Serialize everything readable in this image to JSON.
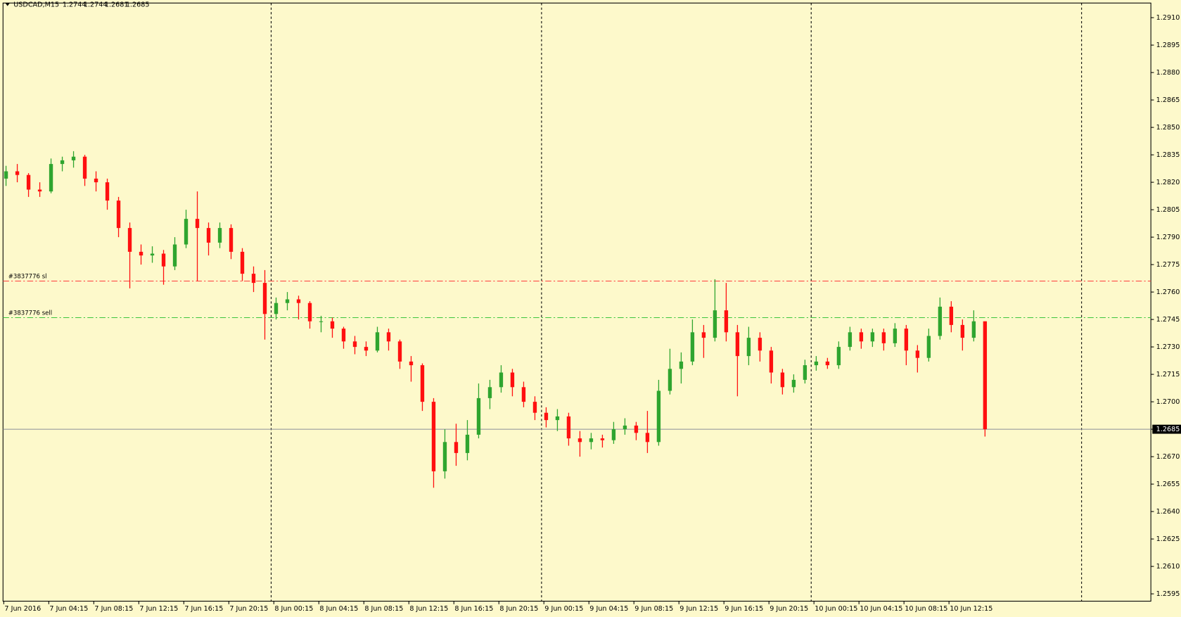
{
  "chart_data": {
    "type": "candlestick",
    "symbol": "USDCAD,M15",
    "up_color": "#2fa52f",
    "down_color": "#ff1010",
    "candles": [
      [
        1.2822,
        1.2829,
        1.2818,
        1.2826
      ],
      [
        1.2826,
        1.283,
        1.282,
        1.2824
      ],
      [
        1.2824,
        1.2825,
        1.2812,
        1.2816
      ],
      [
        1.2816,
        1.282,
        1.2812,
        1.2815
      ],
      [
        1.2815,
        1.2833,
        1.2814,
        1.283
      ],
      [
        1.283,
        1.2834,
        1.2826,
        1.2832
      ],
      [
        1.2832,
        1.2837,
        1.2828,
        1.2834
      ],
      [
        1.2834,
        1.2835,
        1.2818,
        1.2822
      ],
      [
        1.2822,
        1.2826,
        1.2815,
        1.282
      ],
      [
        1.282,
        1.2822,
        1.2805,
        1.281
      ],
      [
        1.281,
        1.2812,
        1.279,
        1.2795
      ],
      [
        1.2795,
        1.2798,
        1.2762,
        1.2782
      ],
      [
        1.2782,
        1.2786,
        1.2775,
        1.278
      ],
      [
        1.278,
        1.2785,
        1.2776,
        1.2781
      ],
      [
        1.2781,
        1.2783,
        1.2764,
        1.2774
      ],
      [
        1.2774,
        1.279,
        1.2772,
        1.2786
      ],
      [
        1.2786,
        1.2805,
        1.2784,
        1.28
      ],
      [
        1.28,
        1.2815,
        1.2766,
        1.2795
      ],
      [
        1.2795,
        1.2798,
        1.278,
        1.2787
      ],
      [
        1.2787,
        1.2798,
        1.2784,
        1.2795
      ],
      [
        1.2795,
        1.2797,
        1.2778,
        1.2782
      ],
      [
        1.2782,
        1.2784,
        1.2766,
        1.277
      ],
      [
        1.277,
        1.2774,
        1.276,
        1.2765
      ],
      [
        1.2765,
        1.2772,
        1.2734,
        1.2748
      ],
      [
        1.2748,
        1.2757,
        1.2745,
        1.2754
      ],
      [
        1.2754,
        1.276,
        1.275,
        1.2756
      ],
      [
        1.2756,
        1.2758,
        1.2745,
        1.2754
      ],
      [
        1.2754,
        1.2755,
        1.274,
        1.2744
      ],
      [
        1.2744,
        1.2747,
        1.2738,
        1.2744
      ],
      [
        1.2744,
        1.2746,
        1.2735,
        1.274
      ],
      [
        1.274,
        1.2741,
        1.2729,
        1.2733
      ],
      [
        1.2733,
        1.2736,
        1.2726,
        1.273
      ],
      [
        1.273,
        1.2733,
        1.2725,
        1.2728
      ],
      [
        1.2728,
        1.2741,
        1.2727,
        1.2738
      ],
      [
        1.2738,
        1.274,
        1.2728,
        1.2733
      ],
      [
        1.2733,
        1.2734,
        1.2718,
        1.2722
      ],
      [
        1.2722,
        1.2725,
        1.2711,
        1.272
      ],
      [
        1.272,
        1.2721,
        1.2695,
        1.27
      ],
      [
        1.27,
        1.2702,
        1.2653,
        1.2662
      ],
      [
        1.2662,
        1.2685,
        1.2658,
        1.2678
      ],
      [
        1.2678,
        1.2688,
        1.2665,
        1.2672
      ],
      [
        1.2672,
        1.269,
        1.2668,
        1.2682
      ],
      [
        1.2682,
        1.271,
        1.268,
        1.2702
      ],
      [
        1.2702,
        1.2712,
        1.2696,
        1.2708
      ],
      [
        1.2708,
        1.272,
        1.2705,
        1.2716
      ],
      [
        1.2716,
        1.2718,
        1.2703,
        1.2708
      ],
      [
        1.2708,
        1.2711,
        1.2697,
        1.27
      ],
      [
        1.27,
        1.2703,
        1.269,
        1.2694
      ],
      [
        1.2694,
        1.2697,
        1.2686,
        1.269
      ],
      [
        1.269,
        1.2696,
        1.2684,
        1.2692
      ],
      [
        1.2692,
        1.2694,
        1.2676,
        1.268
      ],
      [
        1.268,
        1.2684,
        1.267,
        1.2678
      ],
      [
        1.2678,
        1.2683,
        1.2674,
        1.268
      ],
      [
        1.268,
        1.2682,
        1.2675,
        1.2679
      ],
      [
        1.2679,
        1.2689,
        1.2677,
        1.2685
      ],
      [
        1.2685,
        1.2691,
        1.2682,
        1.2687
      ],
      [
        1.2687,
        1.2689,
        1.2679,
        1.2683
      ],
      [
        1.2683,
        1.2695,
        1.2672,
        1.2678
      ],
      [
        1.2678,
        1.2712,
        1.2676,
        1.2706
      ],
      [
        1.2706,
        1.2729,
        1.2704,
        1.2718
      ],
      [
        1.2718,
        1.2727,
        1.271,
        1.2722
      ],
      [
        1.2722,
        1.2745,
        1.272,
        1.2738
      ],
      [
        1.2738,
        1.2742,
        1.2724,
        1.2735
      ],
      [
        1.2735,
        1.2767,
        1.2733,
        1.275
      ],
      [
        1.275,
        1.2765,
        1.2733,
        1.2738
      ],
      [
        1.2738,
        1.2742,
        1.2703,
        1.2725
      ],
      [
        1.2725,
        1.2741,
        1.272,
        1.2735
      ],
      [
        1.2735,
        1.2738,
        1.2722,
        1.2728
      ],
      [
        1.2728,
        1.273,
        1.271,
        1.2716
      ],
      [
        1.2716,
        1.2718,
        1.2704,
        1.2708
      ],
      [
        1.2708,
        1.2715,
        1.2705,
        1.2712
      ],
      [
        1.2712,
        1.2723,
        1.271,
        1.272
      ],
      [
        1.272,
        1.2725,
        1.2717,
        1.2722
      ],
      [
        1.2722,
        1.2724,
        1.2718,
        1.272
      ],
      [
        1.272,
        1.2733,
        1.2718,
        1.273
      ],
      [
        1.273,
        1.2741,
        1.2728,
        1.2738
      ],
      [
        1.2738,
        1.274,
        1.2729,
        1.2733
      ],
      [
        1.2733,
        1.274,
        1.273,
        1.2738
      ],
      [
        1.2738,
        1.274,
        1.2728,
        1.2732
      ],
      [
        1.2732,
        1.2743,
        1.273,
        1.274
      ],
      [
        1.274,
        1.2742,
        1.272,
        1.2728
      ],
      [
        1.2728,
        1.2731,
        1.2716,
        1.2724
      ],
      [
        1.2724,
        1.274,
        1.2722,
        1.2736
      ],
      [
        1.2736,
        1.2757,
        1.2734,
        1.2752
      ],
      [
        1.2752,
        1.2755,
        1.2738,
        1.2742
      ],
      [
        1.2742,
        1.2745,
        1.2728,
        1.2735
      ],
      [
        1.2735,
        1.275,
        1.2733,
        1.2744
      ],
      [
        1.2744,
        1.2744,
        1.2681,
        1.2685
      ]
    ],
    "xticks": [
      {
        "value": 0,
        "label": "7 Jun 2016"
      },
      {
        "value": 4,
        "label": "7 Jun 04:15"
      },
      {
        "value": 8,
        "label": "7 Jun 08:15"
      },
      {
        "value": 12,
        "label": "7 Jun 12:15"
      },
      {
        "value": 16,
        "label": "7 Jun 16:15"
      },
      {
        "value": 20,
        "label": "7 Jun 20:15"
      },
      {
        "value": 24,
        "label": "8 Jun 00:15"
      },
      {
        "value": 28,
        "label": "8 Jun 04:15"
      },
      {
        "value": 32,
        "label": "8 Jun 08:15"
      },
      {
        "value": 36,
        "label": "8 Jun 12:15"
      },
      {
        "value": 40,
        "label": "8 Jun 16:15"
      },
      {
        "value": 44,
        "label": "8 Jun 20:15"
      },
      {
        "value": 48,
        "label": "9 Jun 00:15"
      },
      {
        "value": 52,
        "label": "9 Jun 04:15"
      },
      {
        "value": 56,
        "label": "9 Jun 08:15"
      },
      {
        "value": 60,
        "label": "9 Jun 12:15"
      },
      {
        "value": 64,
        "label": "9 Jun 16:15"
      },
      {
        "value": 68,
        "label": "9 Jun 20:15"
      },
      {
        "value": 72,
        "label": "10 Jun 00:15"
      },
      {
        "value": 76,
        "label": "10 Jun 04:15"
      },
      {
        "value": 80,
        "label": "10 Jun 08:15"
      },
      {
        "value": 84,
        "label": "10 Jun 12:15"
      }
    ],
    "ylim": [
      1.2591,
      1.2918
    ],
    "yticks": [
      {
        "value": 1.291,
        "label": "1.2910"
      },
      1.2895,
      {
        "value": 1.288,
        "label": "1.2880"
      },
      1.2865,
      {
        "value": 1.285,
        "label": "1.2850"
      },
      1.2835,
      {
        "value": 1.282,
        "label": "1.2820"
      },
      1.2805,
      {
        "value": 1.279,
        "label": "1.2790"
      },
      1.2775,
      {
        "value": 1.276,
        "label": "1.2760"
      },
      1.2745,
      {
        "value": 1.273,
        "label": "1.2730"
      },
      1.2715,
      {
        "value": 1.27,
        "label": "1.2700"
      },
      1.2685,
      {
        "value": 1.267,
        "label": "1.2670"
      },
      1.2655,
      {
        "value": 1.264,
        "label": "1.2640"
      },
      1.2625,
      {
        "value": 1.261,
        "label": "1.2610"
      },
      1.2595
    ],
    "order_lines": [
      {
        "label": "#3837776 sl",
        "value": 1.2766,
        "color": "#ff3b3b"
      },
      {
        "label": "#3837776 sell",
        "value": 1.2746,
        "color": "#3cc43c"
      }
    ],
    "price_line": 1.2685
  }
}
